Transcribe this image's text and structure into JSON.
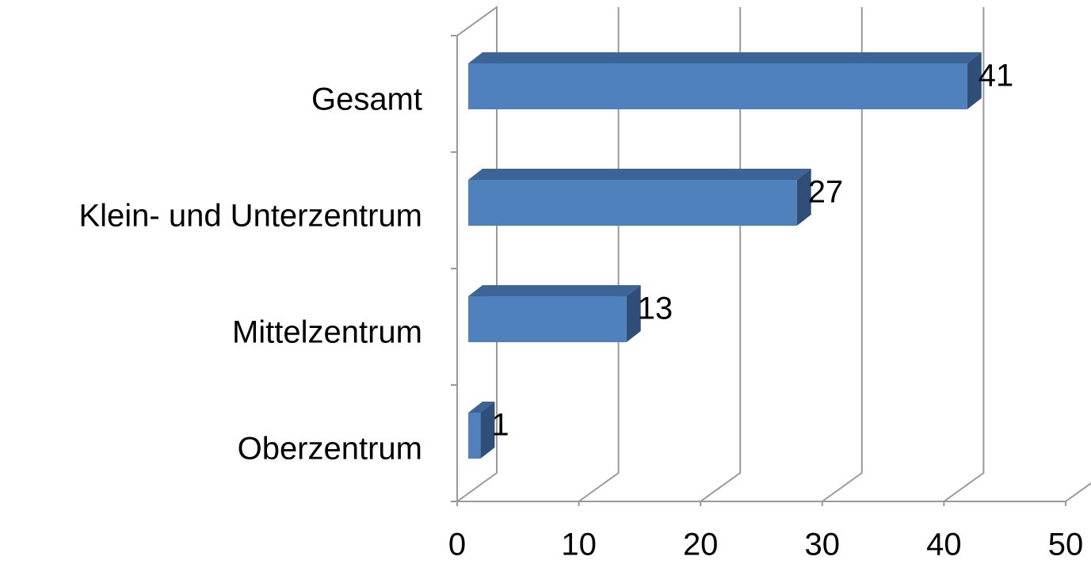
{
  "chart_data": {
    "type": "bar3d_horizontal",
    "categories": [
      "Gesamt",
      "Klein- und Unterzentrum",
      "Mittelzentrum",
      "Oberzentrum"
    ],
    "values": [
      41,
      27,
      13,
      1
    ],
    "color": "#4f81bd",
    "xlim": [
      0,
      50
    ],
    "xticks": [
      0,
      10,
      20,
      30,
      40,
      50
    ],
    "grid": true
  }
}
